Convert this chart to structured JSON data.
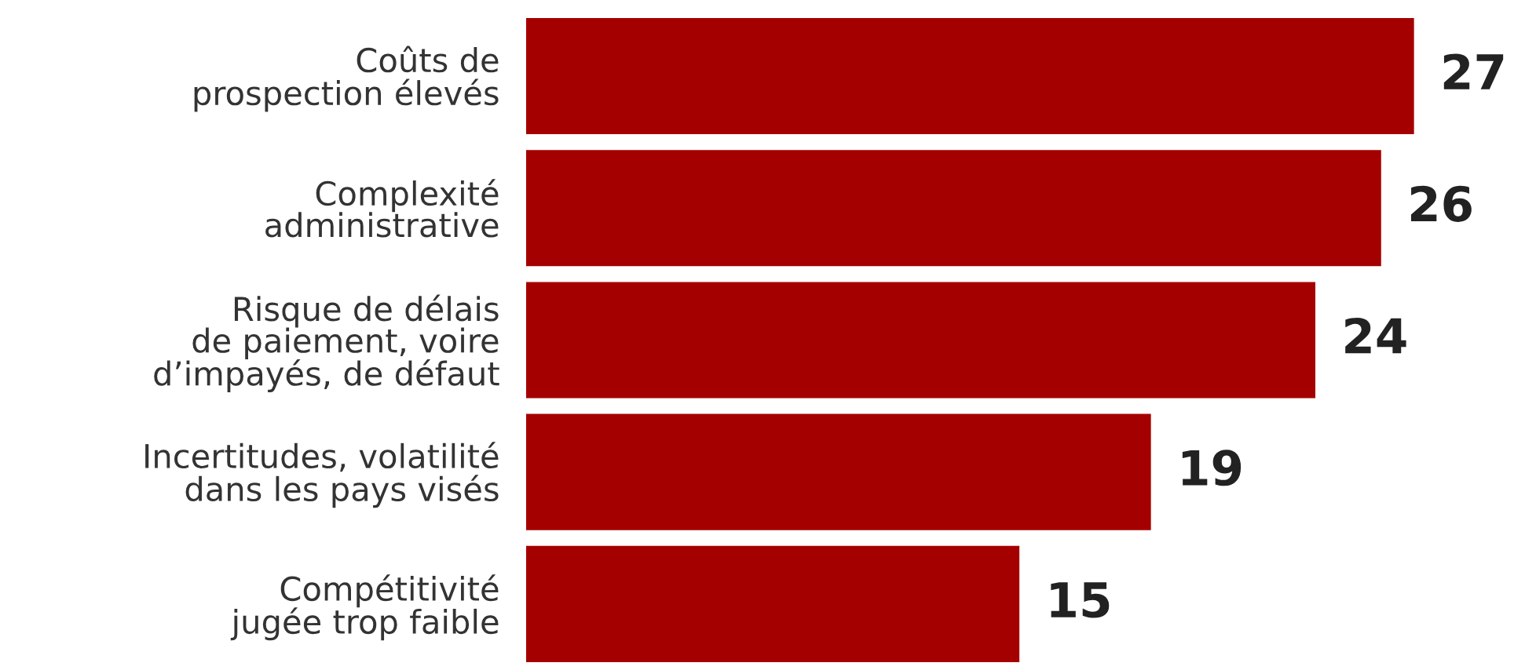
{
  "chart_data": {
    "type": "bar",
    "orientation": "horizontal",
    "categories": [
      "Coûts de\nprospection élevés",
      "Complexité\nadministrative",
      "Risque de délais\nde paiement, voire\nd’impayés, de défaut",
      "Incertitudes, volatilité\ndans les pays visés",
      "Compétitivité\njugée trop faible"
    ],
    "values": [
      27,
      26,
      24,
      19,
      15
    ],
    "color": "#a50000",
    "data_labels": true,
    "grid": false,
    "legend": false
  }
}
